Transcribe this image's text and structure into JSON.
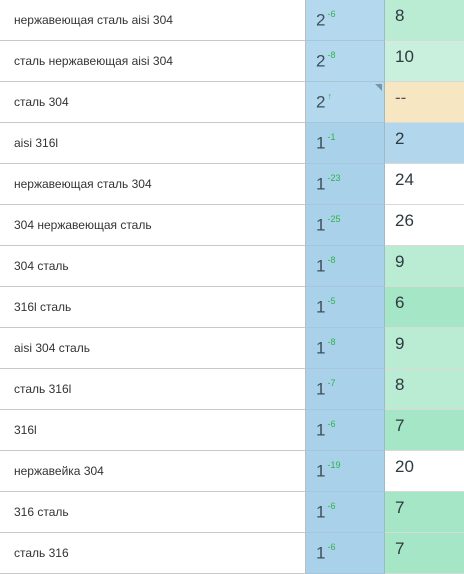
{
  "colors": {
    "pos_blue": "#a9d2ea",
    "pos_blue_light": "#b4d9ee",
    "cnt_green_strong": "#a5e6c6",
    "cnt_green": "#b9ecd3",
    "cnt_green_light": "#c8f0dd",
    "cnt_blue": "#b2d6ec",
    "cnt_yellow": "#f6e7c2",
    "cnt_white": "#ffffff",
    "trend_up": "#2fb34a"
  },
  "rows": [
    {
      "keyword": "нержавеющая сталь aisi 304",
      "position": "2",
      "change": "-6",
      "count": "8"
    },
    {
      "keyword": "сталь нержавеющая aisi 304",
      "position": "2",
      "change": "-8",
      "count": "10"
    },
    {
      "keyword": "сталь 304",
      "position": "2",
      "change": "↑",
      "count": "--"
    },
    {
      "keyword": "aisi 316l",
      "position": "1",
      "change": "-1",
      "count": "2"
    },
    {
      "keyword": "нержавеющая сталь 304",
      "position": "1",
      "change": "-23",
      "count": "24"
    },
    {
      "keyword": "304 нержавеющая сталь",
      "position": "1",
      "change": "-25",
      "count": "26"
    },
    {
      "keyword": "304 сталь",
      "position": "1",
      "change": "-8",
      "count": "9"
    },
    {
      "keyword": "316l сталь",
      "position": "1",
      "change": "-5",
      "count": "6"
    },
    {
      "keyword": "aisi 304 сталь",
      "position": "1",
      "change": "-8",
      "count": "9"
    },
    {
      "keyword": "сталь 316l",
      "position": "1",
      "change": "-7",
      "count": "8"
    },
    {
      "keyword": "316l",
      "position": "1",
      "change": "-6",
      "count": "7"
    },
    {
      "keyword": "нержавейка 304",
      "position": "1",
      "change": "-19",
      "count": "20"
    },
    {
      "keyword": "316 сталь",
      "position": "1",
      "change": "-6",
      "count": "7"
    },
    {
      "keyword": "сталь 316",
      "position": "1",
      "change": "-6",
      "count": "7"
    }
  ]
}
